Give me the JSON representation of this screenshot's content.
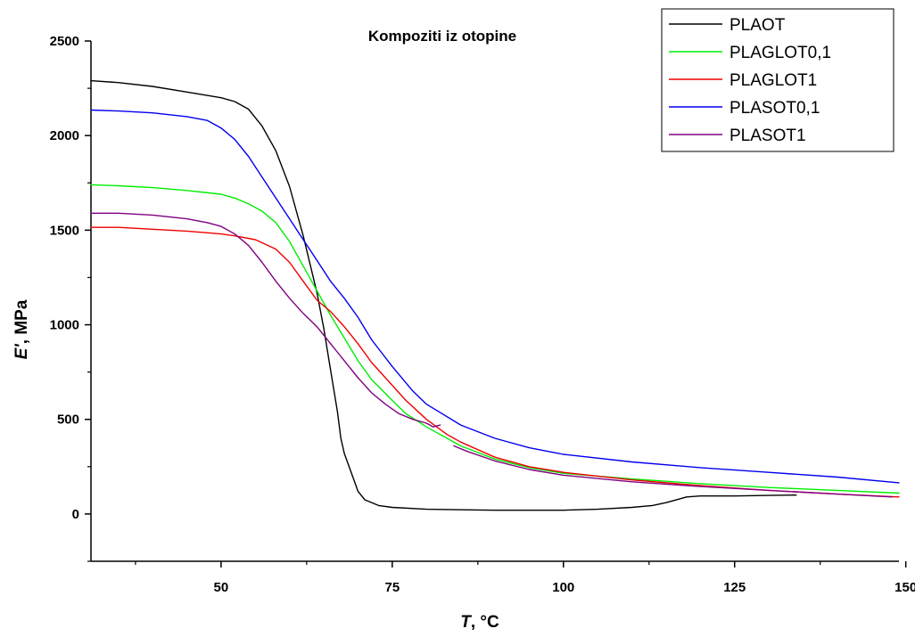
{
  "chart_data": {
    "type": "line",
    "title": "Kompoziti iz otopine",
    "xlabel_var": "T",
    "xlabel_unit": ", °C",
    "ylabel_var": "E'",
    "ylabel_unit": ", MPa",
    "xlim": [
      31,
      149
    ],
    "ylim": [
      -250,
      2500
    ],
    "xticks": [
      50,
      75,
      100,
      125,
      150
    ],
    "yticks": [
      0,
      500,
      1000,
      1500,
      2000,
      2500
    ],
    "grid": false,
    "legend_position": "top-right",
    "series": [
      {
        "name": "PLAOT",
        "color": "#000000",
        "points": [
          [
            31,
            2290
          ],
          [
            35,
            2280
          ],
          [
            40,
            2260
          ],
          [
            45,
            2230
          ],
          [
            50,
            2200
          ],
          [
            52,
            2180
          ],
          [
            54,
            2140
          ],
          [
            56,
            2050
          ],
          [
            58,
            1920
          ],
          [
            60,
            1730
          ],
          [
            62,
            1470
          ],
          [
            64,
            1170
          ],
          [
            65,
            980
          ],
          [
            66,
            760
          ],
          [
            67,
            540
          ],
          [
            67.5,
            400
          ],
          [
            68,
            320
          ],
          [
            69,
            220
          ],
          [
            70,
            120
          ],
          [
            71,
            75
          ],
          [
            73,
            45
          ],
          [
            75,
            35
          ],
          [
            80,
            25
          ],
          [
            90,
            20
          ],
          [
            100,
            20
          ],
          [
            105,
            25
          ],
          [
            110,
            35
          ],
          [
            113,
            45
          ],
          [
            115,
            60
          ],
          [
            117,
            80
          ],
          [
            118,
            90
          ],
          [
            120,
            95
          ],
          [
            125,
            95
          ],
          [
            130,
            98
          ],
          [
            134,
            100
          ]
        ]
      },
      {
        "name": "PLAGLOT0,1",
        "color": "#00ee00",
        "points": [
          [
            31,
            1740
          ],
          [
            35,
            1735
          ],
          [
            40,
            1725
          ],
          [
            45,
            1710
          ],
          [
            50,
            1690
          ],
          [
            52,
            1670
          ],
          [
            54,
            1640
          ],
          [
            56,
            1600
          ],
          [
            58,
            1540
          ],
          [
            60,
            1440
          ],
          [
            62,
            1310
          ],
          [
            64,
            1180
          ],
          [
            66,
            1050
          ],
          [
            68,
            930
          ],
          [
            70,
            810
          ],
          [
            72,
            710
          ],
          [
            75,
            600
          ],
          [
            77,
            530
          ],
          [
            80,
            460
          ],
          [
            85,
            360
          ],
          [
            90,
            290
          ],
          [
            95,
            245
          ],
          [
            100,
            215
          ],
          [
            110,
            185
          ],
          [
            120,
            160
          ],
          [
            130,
            140
          ],
          [
            140,
            125
          ],
          [
            149,
            110
          ]
        ]
      },
      {
        "name": "PLAGLOT1",
        "color": "#ee0000",
        "points": [
          [
            31,
            1515
          ],
          [
            35,
            1515
          ],
          [
            40,
            1505
          ],
          [
            45,
            1495
          ],
          [
            50,
            1480
          ],
          [
            52,
            1470
          ],
          [
            55,
            1450
          ],
          [
            58,
            1400
          ],
          [
            60,
            1330
          ],
          [
            62,
            1230
          ],
          [
            64,
            1130
          ],
          [
            66,
            1070
          ],
          [
            68,
            990
          ],
          [
            70,
            900
          ],
          [
            72,
            800
          ],
          [
            75,
            680
          ],
          [
            77,
            600
          ],
          [
            80,
            500
          ],
          [
            83,
            420
          ],
          [
            85,
            380
          ],
          [
            90,
            300
          ],
          [
            95,
            250
          ],
          [
            100,
            220
          ],
          [
            110,
            180
          ],
          [
            120,
            150
          ],
          [
            130,
            125
          ],
          [
            140,
            105
          ],
          [
            149,
            90
          ]
        ]
      },
      {
        "name": "PLASOT0,1",
        "color": "#0000ee",
        "points": [
          [
            31,
            2135
          ],
          [
            35,
            2130
          ],
          [
            40,
            2120
          ],
          [
            45,
            2100
          ],
          [
            48,
            2080
          ],
          [
            50,
            2040
          ],
          [
            52,
            1980
          ],
          [
            54,
            1890
          ],
          [
            56,
            1780
          ],
          [
            58,
            1670
          ],
          [
            60,
            1560
          ],
          [
            62,
            1450
          ],
          [
            64,
            1340
          ],
          [
            66,
            1230
          ],
          [
            68,
            1140
          ],
          [
            70,
            1040
          ],
          [
            72,
            920
          ],
          [
            75,
            780
          ],
          [
            78,
            650
          ],
          [
            80,
            580
          ],
          [
            85,
            470
          ],
          [
            90,
            400
          ],
          [
            95,
            350
          ],
          [
            100,
            315
          ],
          [
            110,
            275
          ],
          [
            120,
            245
          ],
          [
            130,
            220
          ],
          [
            140,
            195
          ],
          [
            149,
            165
          ]
        ]
      },
      {
        "name": "PLASOT1",
        "color": "#800080",
        "segments": [
          [
            [
              31,
              1590
            ],
            [
              35,
              1590
            ],
            [
              40,
              1580
            ],
            [
              45,
              1560
            ],
            [
              48,
              1540
            ],
            [
              50,
              1520
            ],
            [
              52,
              1480
            ],
            [
              54,
              1420
            ],
            [
              56,
              1330
            ],
            [
              58,
              1230
            ],
            [
              60,
              1140
            ],
            [
              62,
              1060
            ],
            [
              64,
              990
            ],
            [
              66,
              900
            ],
            [
              68,
              810
            ],
            [
              70,
              720
            ],
            [
              72,
              640
            ],
            [
              74,
              580
            ],
            [
              76,
              530
            ],
            [
              78,
              500
            ],
            [
              80,
              480
            ],
            [
              81,
              460
            ],
            [
              82,
              470
            ]
          ],
          [
            [
              84,
              360
            ],
            [
              86,
              330
            ],
            [
              90,
              280
            ],
            [
              95,
              235
            ],
            [
              100,
              205
            ],
            [
              110,
              170
            ],
            [
              120,
              145
            ],
            [
              130,
              125
            ],
            [
              140,
              105
            ],
            [
              148,
              90
            ]
          ]
        ]
      }
    ]
  }
}
